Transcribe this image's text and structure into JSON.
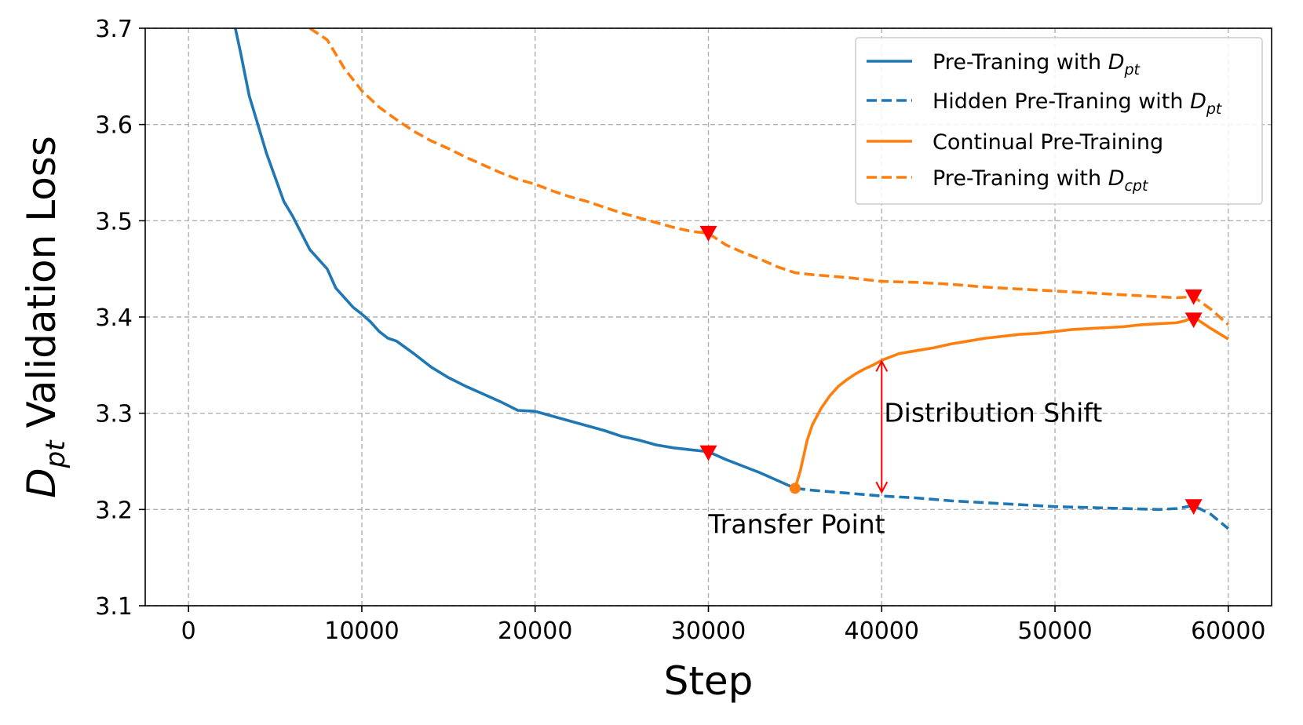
{
  "chart_data": {
    "type": "line",
    "xlabel": "Step",
    "ylabel": {
      "main": "D",
      "sub": "pt",
      "rest": " Validation Loss"
    },
    "xlim": [
      -2500,
      62500
    ],
    "ylim": [
      3.1,
      3.7
    ],
    "xticks": [
      0,
      10000,
      20000,
      30000,
      40000,
      50000,
      60000
    ],
    "yticks": [
      3.1,
      3.2,
      3.3,
      3.4,
      3.5,
      3.6,
      3.7
    ],
    "xtick_labels": [
      "0",
      "10000",
      "20000",
      "30000",
      "40000",
      "50000",
      "60000"
    ],
    "ytick_labels": [
      "3.1",
      "3.2",
      "3.3",
      "3.4",
      "3.5",
      "3.6",
      "3.7"
    ],
    "grid": true,
    "legend_position": "top-right",
    "colors": {
      "blue": "#1f77b4",
      "orange": "#ff7f0e",
      "marker": "#ff0000",
      "grid": "#b0b0b0"
    },
    "series": [
      {
        "key": "pt",
        "legend": {
          "text": "Pre-Traning with D",
          "sub": "pt"
        },
        "color": "#1f77b4",
        "style": "solid",
        "x": [
          2700,
          3000,
          3500,
          4000,
          4500,
          5000,
          5500,
          6000,
          7000,
          8000,
          8500,
          9000,
          9500,
          10000,
          10500,
          11000,
          11500,
          12000,
          13000,
          14000,
          15000,
          16000,
          17000,
          18000,
          19000,
          20000,
          21000,
          22000,
          23000,
          24000,
          25000,
          26000,
          27000,
          28000,
          29000,
          30000,
          31000,
          32000,
          33000,
          34000,
          35000
        ],
        "y": [
          3.7,
          3.675,
          3.63,
          3.6,
          3.57,
          3.545,
          3.52,
          3.505,
          3.47,
          3.45,
          3.43,
          3.42,
          3.41,
          3.403,
          3.395,
          3.385,
          3.378,
          3.375,
          3.362,
          3.348,
          3.337,
          3.328,
          3.32,
          3.312,
          3.303,
          3.302,
          3.297,
          3.292,
          3.287,
          3.282,
          3.276,
          3.272,
          3.267,
          3.264,
          3.262,
          3.26,
          3.252,
          3.245,
          3.238,
          3.23,
          3.222
        ]
      },
      {
        "key": "hidden_pt",
        "legend": {
          "text": "Hidden Pre-Traning with D",
          "sub": "pt"
        },
        "color": "#1f77b4",
        "style": "dashed",
        "x": [
          35000,
          36000,
          38000,
          40000,
          42000,
          44000,
          46000,
          48000,
          50000,
          52000,
          54000,
          56000,
          57000,
          58000,
          59000,
          60000
        ],
        "y": [
          3.222,
          3.22,
          3.217,
          3.214,
          3.212,
          3.209,
          3.207,
          3.205,
          3.203,
          3.202,
          3.201,
          3.2,
          3.201,
          3.204,
          3.195,
          3.18
        ]
      },
      {
        "key": "cpt",
        "legend": {
          "text": "Continual Pre-Training",
          "sub": ""
        },
        "color": "#ff7f0e",
        "style": "solid",
        "x": [
          35000,
          35300,
          35700,
          36000,
          36500,
          37000,
          37500,
          38000,
          38500,
          39000,
          39500,
          40000,
          41000,
          42000,
          43000,
          44000,
          45000,
          46000,
          47000,
          48000,
          49000,
          50000,
          51000,
          52000,
          53000,
          54000,
          55000,
          56000,
          57000,
          57500,
          58000,
          59000,
          60000
        ],
        "y": [
          3.222,
          3.24,
          3.272,
          3.288,
          3.305,
          3.318,
          3.328,
          3.335,
          3.341,
          3.346,
          3.35,
          3.355,
          3.362,
          3.365,
          3.368,
          3.372,
          3.375,
          3.378,
          3.38,
          3.382,
          3.383,
          3.385,
          3.387,
          3.388,
          3.389,
          3.39,
          3.392,
          3.393,
          3.394,
          3.396,
          3.4,
          3.388,
          3.377
        ]
      },
      {
        "key": "pt_cpt",
        "legend": {
          "text": "Pre-Traning with D",
          "sub": "cpt"
        },
        "color": "#ff7f0e",
        "style": "dashed",
        "x": [
          7000,
          8000,
          9000,
          10000,
          11000,
          12000,
          13000,
          14000,
          15000,
          16000,
          17000,
          18000,
          19000,
          20000,
          21000,
          22000,
          23000,
          24000,
          25000,
          26000,
          27000,
          28000,
          29000,
          30000,
          31000,
          32000,
          33000,
          34000,
          35000,
          36000,
          38000,
          40000,
          42000,
          44000,
          46000,
          48000,
          50000,
          52000,
          54000,
          56000,
          57000,
          58000,
          59000,
          60000
        ],
        "y": [
          3.7,
          3.688,
          3.658,
          3.635,
          3.618,
          3.605,
          3.593,
          3.583,
          3.575,
          3.566,
          3.558,
          3.55,
          3.543,
          3.538,
          3.531,
          3.525,
          3.52,
          3.514,
          3.508,
          3.503,
          3.498,
          3.493,
          3.489,
          3.487,
          3.475,
          3.467,
          3.46,
          3.452,
          3.446,
          3.444,
          3.441,
          3.437,
          3.436,
          3.434,
          3.431,
          3.429,
          3.427,
          3.425,
          3.423,
          3.421,
          3.42,
          3.421,
          3.408,
          3.392
        ]
      }
    ],
    "markers": [
      {
        "x": 30000,
        "y": 3.487
      },
      {
        "x": 30000,
        "y": 3.259
      },
      {
        "x": 58000,
        "y": 3.421
      },
      {
        "x": 58000,
        "y": 3.397
      },
      {
        "x": 58000,
        "y": 3.203
      }
    ],
    "transfer_point": {
      "x": 35000,
      "y": 3.222
    },
    "shift_arrow": {
      "x": 40000,
      "y_from": 3.218,
      "y_to": 3.354
    },
    "annotations": {
      "shift": {
        "text": "Distribution Shift",
        "x": 40000,
        "y": 3.3
      },
      "transfer": {
        "text": "Transfer Point",
        "x": 30000,
        "y": 3.185
      }
    }
  }
}
